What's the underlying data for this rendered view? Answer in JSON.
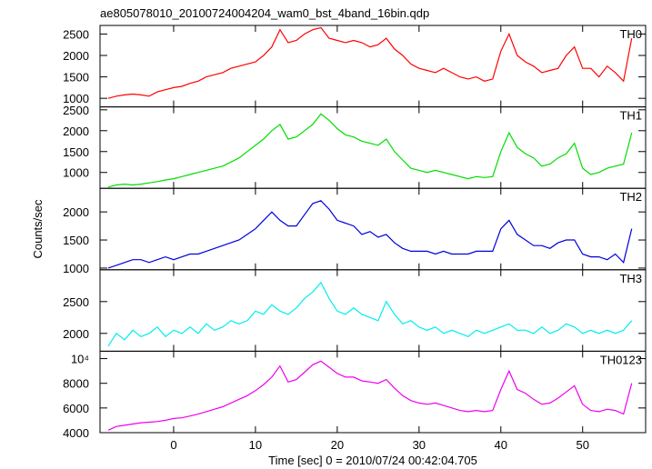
{
  "chart_data": {
    "type": "line",
    "title": "ae805078010_20100724004204_wam0_bst_4band_16bin.qdp",
    "xlabel": "Time [sec] 0 = 2010/07/24 00:42:04.705",
    "ylabel": "Counts/sec",
    "x": [
      -8,
      -7,
      -6,
      -5,
      -4,
      -3,
      -2,
      -1,
      0,
      1,
      2,
      3,
      4,
      5,
      6,
      7,
      8,
      9,
      10,
      11,
      12,
      13,
      14,
      15,
      16,
      17,
      18,
      19,
      20,
      21,
      22,
      23,
      24,
      25,
      26,
      27,
      28,
      29,
      30,
      31,
      32,
      33,
      34,
      35,
      36,
      37,
      38,
      39,
      40,
      41,
      42,
      43,
      44,
      45,
      46,
      47,
      48,
      49,
      50,
      51,
      52,
      53,
      54,
      55,
      56
    ],
    "xlim": [
      -9,
      57.7
    ],
    "xticks": [
      0,
      10,
      20,
      30,
      40,
      50
    ],
    "series": [
      {
        "name": "TH0",
        "color": "#ff0000",
        "ylim": [
          800,
          2700
        ],
        "yticks": [
          1000,
          1500,
          2000,
          2500
        ],
        "values": [
          1000,
          1050,
          1080,
          1100,
          1080,
          1050,
          1150,
          1200,
          1250,
          1280,
          1350,
          1400,
          1500,
          1550,
          1600,
          1700,
          1750,
          1800,
          1850,
          2000,
          2200,
          2600,
          2300,
          2350,
          2500,
          2600,
          2650,
          2400,
          2350,
          2300,
          2350,
          2300,
          2200,
          2250,
          2400,
          2150,
          2000,
          1800,
          1700,
          1650,
          1600,
          1700,
          1600,
          1500,
          1450,
          1500,
          1400,
          1450,
          2100,
          2500,
          2000,
          1850,
          1750,
          1600,
          1650,
          1700,
          2000,
          2200,
          1700,
          1700,
          1500,
          1750,
          1600,
          1400,
          2400
        ]
      },
      {
        "name": "TH1",
        "color": "#00dd00",
        "ylim": [
          620,
          2570
        ],
        "yticks": [
          1000,
          1500,
          2000,
          2500
        ],
        "values": [
          650,
          700,
          720,
          700,
          720,
          750,
          780,
          820,
          850,
          900,
          950,
          1000,
          1050,
          1100,
          1150,
          1250,
          1350,
          1500,
          1650,
          1800,
          2000,
          2150,
          1800,
          1850,
          2000,
          2150,
          2400,
          2250,
          2050,
          1900,
          1850,
          1750,
          1700,
          1650,
          1800,
          1500,
          1300,
          1100,
          1050,
          1000,
          1050,
          1000,
          950,
          900,
          850,
          900,
          880,
          900,
          1500,
          1950,
          1600,
          1450,
          1350,
          1150,
          1200,
          1350,
          1450,
          1700,
          1100,
          950,
          1000,
          1100,
          1150,
          1200,
          1950
        ]
      },
      {
        "name": "TH2",
        "color": "#0000dd",
        "ylim": [
          970,
          2420
        ],
        "yticks": [
          1000,
          1500,
          2000
        ],
        "values": [
          1000,
          1050,
          1100,
          1150,
          1150,
          1100,
          1150,
          1200,
          1150,
          1200,
          1250,
          1250,
          1300,
          1350,
          1400,
          1450,
          1500,
          1600,
          1700,
          1850,
          2000,
          1850,
          1750,
          1750,
          1950,
          2150,
          2200,
          2050,
          1850,
          1800,
          1750,
          1600,
          1650,
          1550,
          1600,
          1450,
          1350,
          1300,
          1300,
          1300,
          1250,
          1300,
          1250,
          1250,
          1250,
          1300,
          1300,
          1300,
          1700,
          1850,
          1600,
          1500,
          1400,
          1400,
          1350,
          1450,
          1500,
          1500,
          1250,
          1200,
          1200,
          1150,
          1250,
          1100,
          1700
        ]
      },
      {
        "name": "TH3",
        "color": "#00eeee",
        "ylim": [
          1720,
          3000
        ],
        "yticks": [
          2000,
          2500
        ],
        "values": [
          1800,
          2000,
          1900,
          2050,
          1950,
          2000,
          2100,
          1950,
          2050,
          2000,
          2100,
          2000,
          2150,
          2050,
          2100,
          2200,
          2150,
          2200,
          2350,
          2300,
          2450,
          2350,
          2300,
          2400,
          2550,
          2650,
          2800,
          2550,
          2350,
          2300,
          2400,
          2300,
          2250,
          2200,
          2500,
          2300,
          2150,
          2200,
          2100,
          2050,
          2100,
          2000,
          2050,
          2000,
          1950,
          2050,
          2000,
          2050,
          2100,
          2150,
          2050,
          2050,
          2000,
          2100,
          2000,
          2050,
          2150,
          2100,
          2000,
          2050,
          2000,
          2050,
          2000,
          2050,
          2200
        ]
      },
      {
        "name": "TH0123",
        "color": "#ee00ee",
        "ylim": [
          4000,
          10600
        ],
        "yticks": [
          4000,
          6000,
          8000,
          {
            "value": 10000,
            "label": "10⁴"
          }
        ],
        "values": [
          4200,
          4500,
          4600,
          4700,
          4800,
          4850,
          4900,
          5000,
          5150,
          5200,
          5350,
          5500,
          5700,
          5900,
          6100,
          6400,
          6700,
          7000,
          7400,
          7900,
          8500,
          9400,
          8100,
          8300,
          8900,
          9500,
          9800,
          9300,
          8800,
          8500,
          8500,
          8200,
          8100,
          8000,
          8300,
          7600,
          7000,
          6600,
          6400,
          6300,
          6400,
          6200,
          6000,
          5800,
          5700,
          5800,
          5700,
          5800,
          7500,
          9000,
          7500,
          7200,
          6700,
          6300,
          6400,
          6800,
          7300,
          7800,
          6300,
          5800,
          5700,
          5900,
          5800,
          5500,
          8000
        ]
      }
    ]
  }
}
